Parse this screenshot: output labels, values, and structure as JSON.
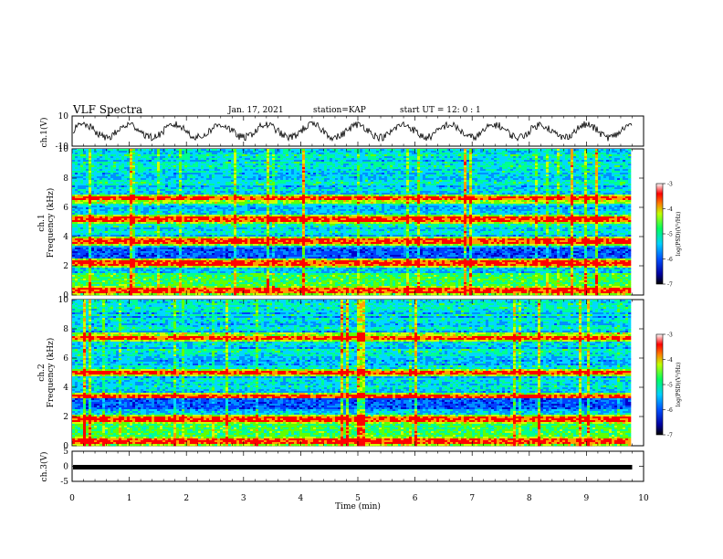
{
  "header": {
    "title": "VLF Spectra",
    "date": "Jan. 17, 2021",
    "station": "station=KAP",
    "start": "start UT =   12: 0  : 1"
  },
  "chart_data": [
    {
      "type": "line",
      "ylabel": "ch.1(V)",
      "ylim": [
        -10,
        10
      ],
      "yticks": [
        "10",
        "-10"
      ],
      "description_series": "ch.1 voltage waveform, oscillating between about -6 and 6 V",
      "x_range": [
        0,
        9.8
      ],
      "approx_period_min": 0.8
    },
    {
      "type": "heatmap",
      "ylabel": "ch.1",
      "ylabel2": "Frequency (kHz)",
      "ylim": [
        0,
        10
      ],
      "yticks": [
        "0",
        "2",
        "4",
        "6",
        "8",
        "10"
      ],
      "x_range": [
        0,
        9.8
      ],
      "lines_khz": [
        0.3,
        2.2,
        3.7,
        5.2,
        6.6
      ]
    },
    {
      "type": "heatmap",
      "ylabel": "ch.2",
      "ylabel2": "Frequency (kHz)",
      "ylim": [
        0,
        10
      ],
      "yticks": [
        "0",
        "2",
        "4",
        "6",
        "8",
        "10"
      ],
      "x_range": [
        0,
        9.8
      ],
      "lines_khz": [
        0.3,
        1.8,
        3.3,
        5.0,
        7.4
      ]
    },
    {
      "type": "line",
      "ylabel": "ch.3(V)",
      "ylim": [
        -5,
        5
      ],
      "yticks": [
        "5",
        "0",
        "-5"
      ],
      "constant_value": -0.3,
      "x_range": [
        0,
        9.8
      ]
    }
  ],
  "xaxis": {
    "label": "Time  (min)",
    "ticks": [
      "0",
      "1",
      "2",
      "3",
      "4",
      "5",
      "6",
      "7",
      "8",
      "9",
      "10"
    ],
    "xlim": [
      0,
      10
    ]
  },
  "colorbar": {
    "ticks": [
      "-3",
      "-4",
      "-5",
      "-6",
      "-7"
    ],
    "label": "log(PSD)(V²/Hz)",
    "range": [
      -7,
      -3
    ],
    "colors": [
      "#000080",
      "#0000ff",
      "#00bfff",
      "#00ff80",
      "#c8ff00",
      "#ff8000",
      "#ff0000",
      "#ffffff"
    ]
  }
}
